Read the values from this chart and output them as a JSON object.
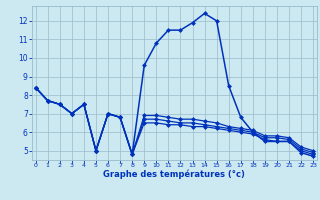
{
  "xlabel": "Graphe des températures (°c)",
  "x": [
    0,
    1,
    2,
    3,
    4,
    5,
    6,
    7,
    8,
    9,
    10,
    11,
    12,
    13,
    14,
    15,
    16,
    17,
    18,
    19,
    20,
    21,
    22,
    23
  ],
  "temp_main": [
    8.4,
    7.7,
    7.5,
    7.0,
    7.5,
    5.0,
    7.0,
    6.8,
    4.8,
    9.6,
    10.8,
    11.5,
    11.5,
    11.9,
    12.4,
    12.0,
    8.5,
    6.8,
    6.0,
    5.5,
    5.5,
    5.5,
    4.9,
    4.7
  ],
  "temp_line_a": [
    8.4,
    7.7,
    7.5,
    7.0,
    7.5,
    5.0,
    7.0,
    6.8,
    4.8,
    6.5,
    6.5,
    6.4,
    6.4,
    6.3,
    6.3,
    6.2,
    6.1,
    6.0,
    5.9,
    5.6,
    5.5,
    5.5,
    5.0,
    4.8
  ],
  "temp_line_b": [
    8.4,
    7.7,
    7.5,
    7.0,
    7.5,
    5.0,
    7.0,
    6.8,
    4.8,
    6.7,
    6.7,
    6.6,
    6.5,
    6.5,
    6.4,
    6.3,
    6.2,
    6.1,
    6.0,
    5.7,
    5.7,
    5.6,
    5.1,
    4.9
  ],
  "temp_line_c": [
    8.4,
    7.7,
    7.5,
    7.0,
    7.5,
    5.0,
    7.0,
    6.8,
    4.8,
    6.9,
    6.9,
    6.8,
    6.7,
    6.7,
    6.6,
    6.5,
    6.3,
    6.2,
    6.1,
    5.8,
    5.8,
    5.7,
    5.2,
    5.0
  ],
  "bg_color": "#cce8f0",
  "line_color": "#0033bb",
  "grid_color": "#99bbcc",
  "ylim": [
    4.5,
    12.8
  ],
  "yticks": [
    5,
    6,
    7,
    8,
    9,
    10,
    11,
    12
  ],
  "xlim": [
    -0.3,
    23.3
  ],
  "xticks": [
    0,
    1,
    2,
    3,
    4,
    5,
    6,
    7,
    8,
    9,
    10,
    11,
    12,
    13,
    14,
    15,
    16,
    17,
    18,
    19,
    20,
    21,
    22,
    23
  ]
}
